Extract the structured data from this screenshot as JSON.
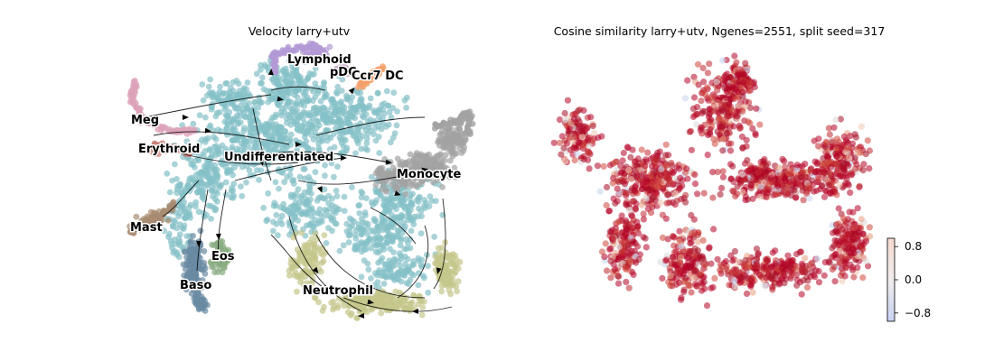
{
  "chart_data": [
    {
      "type": "scatter",
      "title": "Velocity larry+utv",
      "xlabel": "",
      "ylabel": "",
      "grid": false,
      "overlay": "velocity streamlines",
      "clusters": [
        {
          "name": "Undifferentiated",
          "color": "#84c0c8"
        },
        {
          "name": "Lymphoid",
          "color": "#b39ad6"
        },
        {
          "name": "pDC",
          "color": "#c4a0c8"
        },
        {
          "name": "Ccr7 DC",
          "color": "#f5a06a"
        },
        {
          "name": "Meg",
          "color": "#dca3b9"
        },
        {
          "name": "Erythroid",
          "color": "#c98078"
        },
        {
          "name": "Monocyte",
          "color": "#a3a3a3"
        },
        {
          "name": "Mast",
          "color": "#a88b70"
        },
        {
          "name": "Eos",
          "color": "#88ab80"
        },
        {
          "name": "Baso",
          "color": "#6a8aa3"
        },
        {
          "name": "Neutrophil",
          "color": "#c4c68a"
        }
      ]
    },
    {
      "type": "scatter",
      "title": "Cosine similarity larry+utv, Ngenes=2551, split seed=317",
      "xlabel": "",
      "ylabel": "",
      "grid": false,
      "colormap": "coolwarm",
      "colorbar": {
        "ticks": [
          0.8,
          0.0,
          -0.8
        ],
        "tick_labels": [
          "0.8",
          "0.0",
          "−0.8"
        ],
        "range": [
          -1.0,
          1.0
        ]
      },
      "dominant_value": 1.0
    }
  ]
}
